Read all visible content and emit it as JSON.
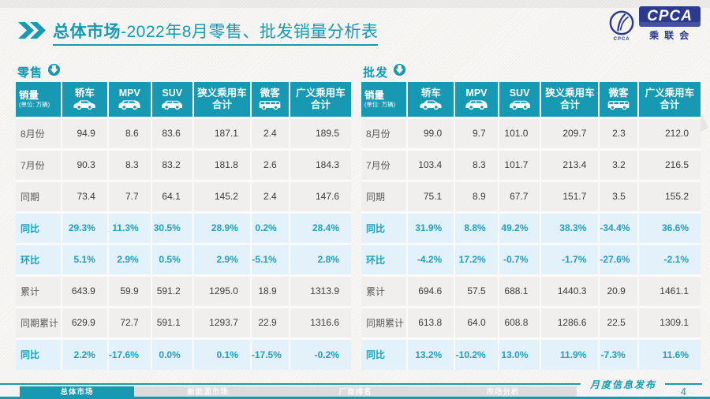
{
  "slide": {
    "title": {
      "prefix": "总体市场",
      "rest": "-2022年8月零售、批发销量分析表"
    },
    "logo": {
      "main": "CPCA",
      "sub": "乘联会",
      "emblem_caption": "CPCA"
    },
    "footer": {
      "note": "月度信息发布",
      "page": "4",
      "tabs": [
        {
          "label": "总体市场",
          "active": true
        },
        {
          "label": "新能源市场",
          "active": false
        },
        {
          "label": "厂商排名",
          "active": false
        },
        {
          "label": "市场分析",
          "active": false
        }
      ]
    },
    "colors": {
      "teal": "#1799b4",
      "percent_text": "#1da2c6",
      "highlight_bg": "#e3f1fa",
      "logo_blue": "#2b3a8f"
    }
  },
  "chart_data": [
    {
      "type": "table",
      "title": "零售",
      "unit_label": "销量",
      "unit_note": "(单位: 万辆)",
      "columns": [
        {
          "label": "轿车",
          "icon": "sedan-icon"
        },
        {
          "label": "MPV",
          "icon": "mpv-icon"
        },
        {
          "label": "SUV",
          "icon": "suv-icon"
        },
        {
          "label": "狭义乘用车\n合计",
          "icon": null
        },
        {
          "label": "微客",
          "icon": "minibus-icon"
        },
        {
          "label": "广义乘用车\n合计",
          "icon": null
        }
      ],
      "rows": [
        {
          "label": "8月份",
          "highlight": false,
          "values": [
            "94.9",
            "8.6",
            "83.6",
            "187.1",
            "2.4",
            "189.5"
          ]
        },
        {
          "label": "7月份",
          "highlight": false,
          "values": [
            "90.3",
            "8.3",
            "83.2",
            "181.8",
            "2.6",
            "184.3"
          ]
        },
        {
          "label": "同期",
          "highlight": false,
          "values": [
            "73.4",
            "7.7",
            "64.1",
            "145.2",
            "2.4",
            "147.6"
          ]
        },
        {
          "label": "同比",
          "highlight": true,
          "values": [
            "29.3%",
            "11.3%",
            "30.5%",
            "28.9%",
            "0.2%",
            "28.4%"
          ]
        },
        {
          "label": "环比",
          "highlight": true,
          "values": [
            "5.1%",
            "2.9%",
            "0.5%",
            "2.9%",
            "-5.1%",
            "2.8%"
          ]
        },
        {
          "label": "累计",
          "highlight": false,
          "values": [
            "643.9",
            "59.9",
            "591.2",
            "1295.0",
            "18.9",
            "1313.9"
          ]
        },
        {
          "label": "同期累计",
          "highlight": false,
          "values": [
            "629.9",
            "72.7",
            "591.1",
            "1293.7",
            "22.9",
            "1316.6"
          ]
        },
        {
          "label": "同比",
          "highlight": true,
          "values": [
            "2.2%",
            "-17.6%",
            "0.0%",
            "0.1%",
            "-17.5%",
            "-0.2%"
          ]
        }
      ]
    },
    {
      "type": "table",
      "title": "批发",
      "unit_label": "销量",
      "unit_note": "(单位: 万辆)",
      "columns": [
        {
          "label": "轿车",
          "icon": "sedan-icon"
        },
        {
          "label": "MPV",
          "icon": "mpv-icon"
        },
        {
          "label": "SUV",
          "icon": "suv-icon"
        },
        {
          "label": "狭义乘用车\n合计",
          "icon": null
        },
        {
          "label": "微客",
          "icon": "minibus-icon"
        },
        {
          "label": "广义乘用车\n合计",
          "icon": null
        }
      ],
      "rows": [
        {
          "label": "8月份",
          "highlight": false,
          "values": [
            "99.0",
            "9.7",
            "101.0",
            "209.7",
            "2.3",
            "212.0"
          ]
        },
        {
          "label": "7月份",
          "highlight": false,
          "values": [
            "103.4",
            "8.3",
            "101.7",
            "213.4",
            "3.2",
            "216.5"
          ]
        },
        {
          "label": "同期",
          "highlight": false,
          "values": [
            "75.1",
            "8.9",
            "67.7",
            "151.7",
            "3.5",
            "155.2"
          ]
        },
        {
          "label": "同比",
          "highlight": true,
          "values": [
            "31.9%",
            "8.8%",
            "49.2%",
            "38.3%",
            "-34.4%",
            "36.6%"
          ]
        },
        {
          "label": "环比",
          "highlight": true,
          "values": [
            "-4.2%",
            "17.2%",
            "-0.7%",
            "-1.7%",
            "-27.6%",
            "-2.1%"
          ]
        },
        {
          "label": "累计",
          "highlight": false,
          "values": [
            "694.6",
            "57.5",
            "688.1",
            "1440.3",
            "20.9",
            "1461.1"
          ]
        },
        {
          "label": "同期累计",
          "highlight": false,
          "values": [
            "613.8",
            "64.0",
            "608.8",
            "1286.6",
            "22.5",
            "1309.1"
          ]
        },
        {
          "label": "同比",
          "highlight": true,
          "values": [
            "13.2%",
            "-10.2%",
            "13.0%",
            "11.9%",
            "-7.3%",
            "11.6%"
          ]
        }
      ]
    }
  ]
}
